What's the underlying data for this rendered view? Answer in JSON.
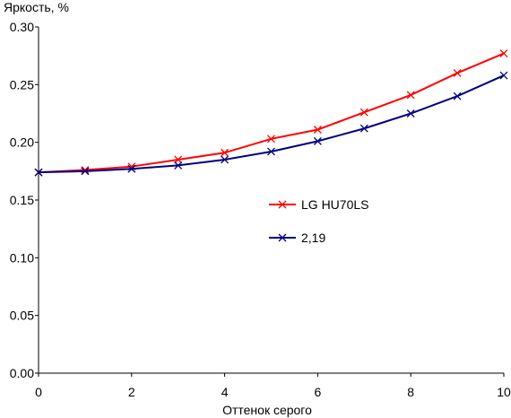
{
  "chart_data": {
    "type": "line",
    "ylabel": "Яркость, %",
    "xlabel": "Оттенок серого",
    "xlim": [
      0,
      10
    ],
    "ylim": [
      0,
      0.3
    ],
    "xticks": [
      "0",
      "2",
      "4",
      "6",
      "8",
      "10"
    ],
    "yticks": [
      "0.00",
      "0.05",
      "0.10",
      "0.15",
      "0.20",
      "0.25",
      "0.30"
    ],
    "x": [
      0,
      1,
      2,
      3,
      4,
      5,
      6,
      7,
      8,
      9,
      10
    ],
    "grid": false,
    "legend_position": "center",
    "series": [
      {
        "name": "LG HU70LS",
        "color": "#ff0000",
        "marker": "x",
        "values": [
          0.174,
          0.176,
          0.179,
          0.185,
          0.191,
          0.203,
          0.211,
          0.226,
          0.241,
          0.26,
          0.277
        ]
      },
      {
        "name": "2,19",
        "color": "#00007f",
        "marker": "x",
        "values": [
          0.174,
          0.175,
          0.177,
          0.18,
          0.185,
          0.192,
          0.201,
          0.212,
          0.225,
          0.24,
          0.258
        ]
      }
    ]
  }
}
